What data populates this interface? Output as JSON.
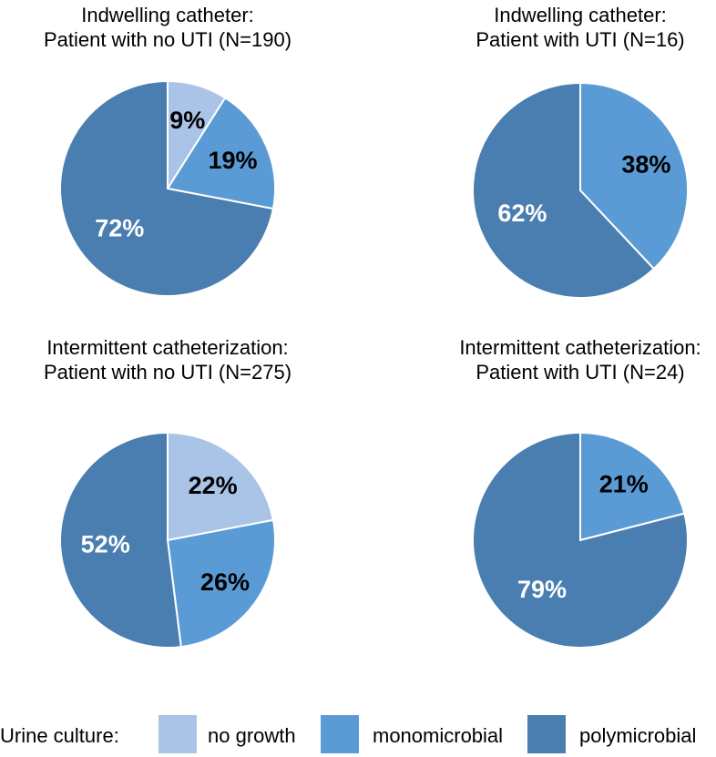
{
  "chart_data": [
    {
      "type": "pie",
      "title": "Indwelling catheter:\nPatient with no UTI (N=190)",
      "categories": [
        "no growth",
        "monomicrobial",
        "polymicrobial"
      ],
      "values": [
        9,
        19,
        72
      ],
      "labels": [
        "9%",
        "19%",
        "72%"
      ]
    },
    {
      "type": "pie",
      "title": "Indwelling catheter:\nPatient with UTI (N=16)",
      "categories": [
        "no growth",
        "monomicrobial",
        "polymicrobial"
      ],
      "values": [
        0,
        38,
        62
      ],
      "labels": [
        "",
        "38%",
        "62%"
      ]
    },
    {
      "type": "pie",
      "title": "Intermittent catheterization:\nPatient with no UTI (N=275)",
      "categories": [
        "no growth",
        "monomicrobial",
        "polymicrobial"
      ],
      "values": [
        22,
        26,
        52
      ],
      "labels": [
        "22%",
        "26%",
        "52%"
      ]
    },
    {
      "type": "pie",
      "title": "Intermittent catheterization:\nPatient with UTI (N=24)",
      "categories": [
        "no growth",
        "monomicrobial",
        "polymicrobial"
      ],
      "values": [
        0,
        21,
        79
      ],
      "labels": [
        "",
        "21%",
        "79%"
      ]
    }
  ],
  "legend": {
    "title": "Urine culture:",
    "placement": "bottom",
    "items": [
      {
        "label": "no growth",
        "color": "#a9c4e7",
        "text_color": "#000000"
      },
      {
        "label": "monomicrobial",
        "color": "#5b9bd5",
        "text_color": "#000000"
      },
      {
        "label": "polymicrobial",
        "color": "#4a7eb0",
        "text_color": "#ffffff"
      }
    ]
  },
  "colors": {
    "slice_border": "#ffffff"
  }
}
